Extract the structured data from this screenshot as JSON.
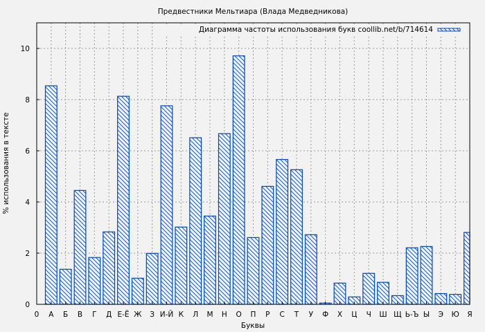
{
  "chart_data": {
    "type": "bar",
    "title": "Предвестники Мельтиара (Влада Медведникова)",
    "xlabel": "Буквы",
    "ylabel": "% использования в тексте",
    "legend": {
      "label": "Диаграмма частоты использования букв coollib.net/b/714614",
      "placement": "top-right"
    },
    "x_zero_label": "0",
    "categories": [
      "А",
      "Б",
      "В",
      "Г",
      "Д",
      "Е-Ё",
      "Ж",
      "З",
      "И-Й",
      "К",
      "Л",
      "М",
      "Н",
      "О",
      "П",
      "Р",
      "С",
      "Т",
      "У",
      "Ф",
      "Х",
      "Ц",
      "Ч",
      "Ш",
      "Щ",
      "Ь-Ъ",
      "Ы",
      "Э",
      "Ю",
      "Я"
    ],
    "values": [
      8.54,
      1.37,
      4.45,
      1.83,
      2.83,
      8.13,
      1.02,
      1.99,
      7.76,
      3.02,
      6.51,
      3.45,
      6.67,
      9.71,
      2.61,
      4.61,
      5.66,
      5.26,
      2.72,
      0.05,
      0.83,
      0.29,
      1.21,
      0.86,
      0.34,
      2.21,
      2.26,
      0.42,
      0.39,
      2.81
    ],
    "ylim": [
      0,
      11
    ],
    "xlim": [
      0,
      30
    ],
    "yticks": [
      0,
      2,
      4,
      6,
      8,
      10
    ],
    "grid": true,
    "bar_color": "#0047bb"
  }
}
